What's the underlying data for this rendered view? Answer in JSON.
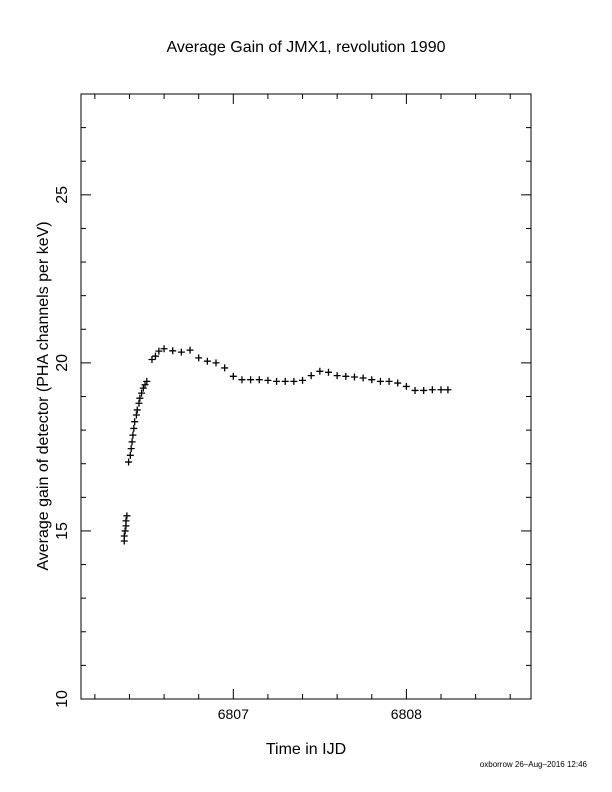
{
  "chart_data": {
    "type": "scatter",
    "title": "Average Gain of JMX1, revolution 1990",
    "xlabel": "Time in IJD",
    "ylabel": "Average gain of detector (PHA channels per keV)",
    "xlim": [
      6806.12,
      6808.72
    ],
    "ylim": [
      10,
      28
    ],
    "x_ticks": [
      6807,
      6808
    ],
    "y_ticks": [
      10,
      15,
      20,
      25
    ],
    "grid": false,
    "legend": "none",
    "marker": "plus",
    "color": "#000000",
    "points": [
      [
        6806.37,
        14.7
      ],
      [
        6806.37,
        14.85
      ],
      [
        6806.375,
        15.0
      ],
      [
        6806.38,
        15.15
      ],
      [
        6806.38,
        15.3
      ],
      [
        6806.385,
        15.45
      ],
      [
        6806.395,
        17.05
      ],
      [
        6806.405,
        17.25
      ],
      [
        6806.41,
        17.45
      ],
      [
        6806.415,
        17.65
      ],
      [
        6806.42,
        17.85
      ],
      [
        6806.425,
        18.05
      ],
      [
        6806.43,
        18.25
      ],
      [
        6806.44,
        18.45
      ],
      [
        6806.445,
        18.6
      ],
      [
        6806.455,
        18.8
      ],
      [
        6806.46,
        18.95
      ],
      [
        6806.47,
        19.1
      ],
      [
        6806.48,
        19.25
      ],
      [
        6806.49,
        19.35
      ],
      [
        6806.5,
        19.45
      ],
      [
        6806.53,
        20.1
      ],
      [
        6806.55,
        20.2
      ],
      [
        6806.57,
        20.35
      ],
      [
        6806.6,
        20.42
      ],
      [
        6806.65,
        20.36
      ],
      [
        6806.7,
        20.32
      ],
      [
        6806.75,
        20.38
      ],
      [
        6806.8,
        20.15
      ],
      [
        6806.85,
        20.05
      ],
      [
        6806.9,
        20.0
      ],
      [
        6806.95,
        19.85
      ],
      [
        6807.0,
        19.6
      ],
      [
        6807.05,
        19.5
      ],
      [
        6807.1,
        19.5
      ],
      [
        6807.15,
        19.5
      ],
      [
        6807.2,
        19.48
      ],
      [
        6807.25,
        19.45
      ],
      [
        6807.3,
        19.45
      ],
      [
        6807.35,
        19.45
      ],
      [
        6807.4,
        19.48
      ],
      [
        6807.45,
        19.62
      ],
      [
        6807.5,
        19.75
      ],
      [
        6807.55,
        19.72
      ],
      [
        6807.6,
        19.62
      ],
      [
        6807.65,
        19.6
      ],
      [
        6807.7,
        19.58
      ],
      [
        6807.75,
        19.55
      ],
      [
        6807.8,
        19.5
      ],
      [
        6807.85,
        19.45
      ],
      [
        6807.9,
        19.45
      ],
      [
        6807.95,
        19.4
      ],
      [
        6808.0,
        19.3
      ],
      [
        6808.05,
        19.18
      ],
      [
        6808.1,
        19.18
      ],
      [
        6808.15,
        19.2
      ],
      [
        6808.2,
        19.2
      ],
      [
        6808.24,
        19.2
      ]
    ]
  },
  "footer": {
    "credit": "oxborrow 26–Aug–2016 12:46"
  }
}
